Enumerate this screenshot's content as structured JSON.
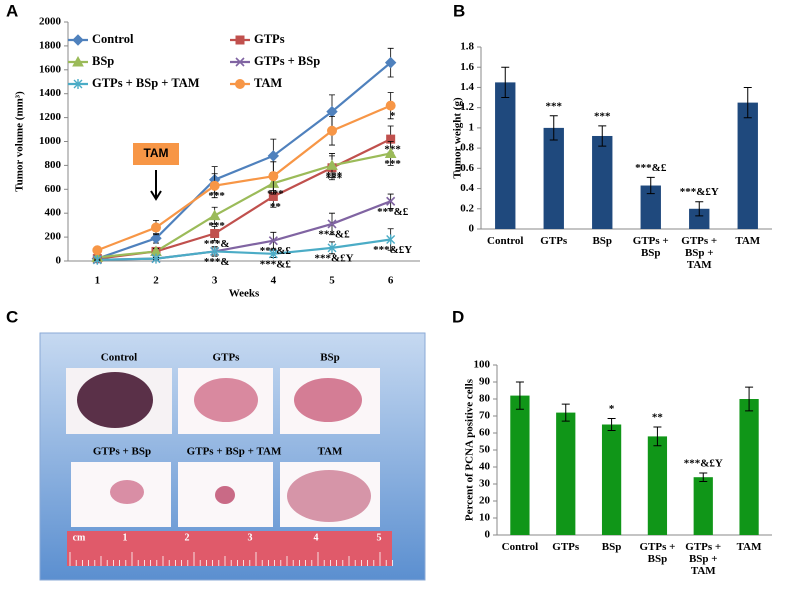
{
  "chart_data": [
    {
      "type": "line",
      "panel_label": "A",
      "y_title": "Tumor volume (mm³)",
      "x_title": "Weeks",
      "categories": [
        "1",
        "2",
        "3",
        "4",
        "5",
        "6"
      ],
      "ylim": [
        0,
        2000
      ],
      "yticks": [
        0,
        200,
        400,
        600,
        800,
        1000,
        1200,
        1400,
        1600,
        1800,
        2000
      ],
      "callout": {
        "text": "TAM",
        "category": "2"
      },
      "series": [
        {
          "name": "Control",
          "color": "#4f81bd",
          "marker": "diamond",
          "values": [
            20,
            190,
            680,
            880,
            1250,
            1660
          ],
          "errors": [
            15,
            40,
            110,
            140,
            140,
            120
          ],
          "point_labels": [
            null,
            null,
            null,
            null,
            null,
            null
          ]
        },
        {
          "name": "GTPs",
          "color": "#c0504d",
          "marker": "square",
          "values": [
            20,
            80,
            230,
            540,
            780,
            1020
          ],
          "errors": [
            10,
            25,
            60,
            90,
            100,
            110
          ],
          "point_labels": [
            null,
            null,
            "***&",
            "**",
            "***",
            "***"
          ]
        },
        {
          "name": "BSp",
          "color": "#9bbb59",
          "marker": "triangle",
          "values": [
            30,
            80,
            380,
            650,
            800,
            900
          ],
          "errors": [
            10,
            25,
            70,
            90,
            100,
            100
          ],
          "point_labels": [
            null,
            null,
            "***",
            "***",
            "***",
            "***"
          ]
        },
        {
          "name": "GTPs + BSp",
          "color": "#8064a2",
          "marker": "x",
          "values": [
            10,
            20,
            80,
            170,
            310,
            500
          ],
          "errors": [
            5,
            10,
            40,
            70,
            90,
            60
          ],
          "point_labels": [
            null,
            null,
            "***&",
            "***&£",
            "***&£",
            "***&£"
          ]
        },
        {
          "name": "GTPs + BSp + TAM",
          "color": "#4bacc6",
          "marker": "star",
          "values": [
            10,
            20,
            80,
            60,
            110,
            180
          ],
          "errors": [
            5,
            10,
            30,
            30,
            50,
            90
          ],
          "point_labels": [
            null,
            null,
            null,
            "***&£",
            "***&£Y",
            "***&£Y"
          ]
        },
        {
          "name": "TAM",
          "color": "#f79646",
          "marker": "circle",
          "values": [
            90,
            280,
            630,
            710,
            1090,
            1300
          ],
          "errors": [
            20,
            60,
            100,
            120,
            120,
            110
          ],
          "point_labels": [
            null,
            null,
            "***",
            null,
            null,
            "*"
          ]
        }
      ]
    },
    {
      "type": "bar",
      "panel_label": "B",
      "y_title": "Tumor weight (g)",
      "color": "#1f497d",
      "categories": [
        "Control",
        "GTPs",
        "BSp",
        "GTPs + BSp",
        "GTPs + BSp + TAM",
        "TAM"
      ],
      "values": [
        1.45,
        1.0,
        0.92,
        0.43,
        0.2,
        1.25
      ],
      "errors": [
        0.15,
        0.12,
        0.1,
        0.08,
        0.07,
        0.15
      ],
      "value_labels": [
        null,
        "***",
        "***",
        "***&£",
        "***&£Y",
        null
      ],
      "ylim": [
        0,
        1.8
      ],
      "yticks": [
        0,
        0.2,
        0.4,
        0.6,
        0.8,
        1,
        1.2,
        1.4,
        1.6,
        1.8
      ]
    },
    {
      "type": "bar",
      "panel_label": "D",
      "y_title": "Percent of PCNA positive cells",
      "color": "#109618",
      "categories": [
        "Control",
        "GTPs",
        "BSp",
        "GTPs + BSp",
        "GTPs + BSp + TAM",
        "TAM"
      ],
      "values": [
        82,
        72,
        65,
        58,
        34,
        80
      ],
      "errors": [
        8,
        5,
        3.5,
        5.5,
        2.5,
        7
      ],
      "value_labels": [
        null,
        null,
        "*",
        "**",
        "***&£Y",
        null
      ],
      "ylim": [
        0,
        100
      ],
      "yticks": [
        0,
        10,
        20,
        30,
        40,
        50,
        60,
        70,
        80,
        90,
        100
      ]
    }
  ],
  "photo_panel": {
    "panel_label": "C",
    "sample_labels": [
      "Control",
      "GTPs",
      "BSp",
      "GTPs + BSp",
      "GTPs + BSp + TAM",
      "TAM"
    ],
    "ruler_labels": [
      "cm",
      "1",
      "2",
      "3",
      "4",
      "5"
    ]
  }
}
